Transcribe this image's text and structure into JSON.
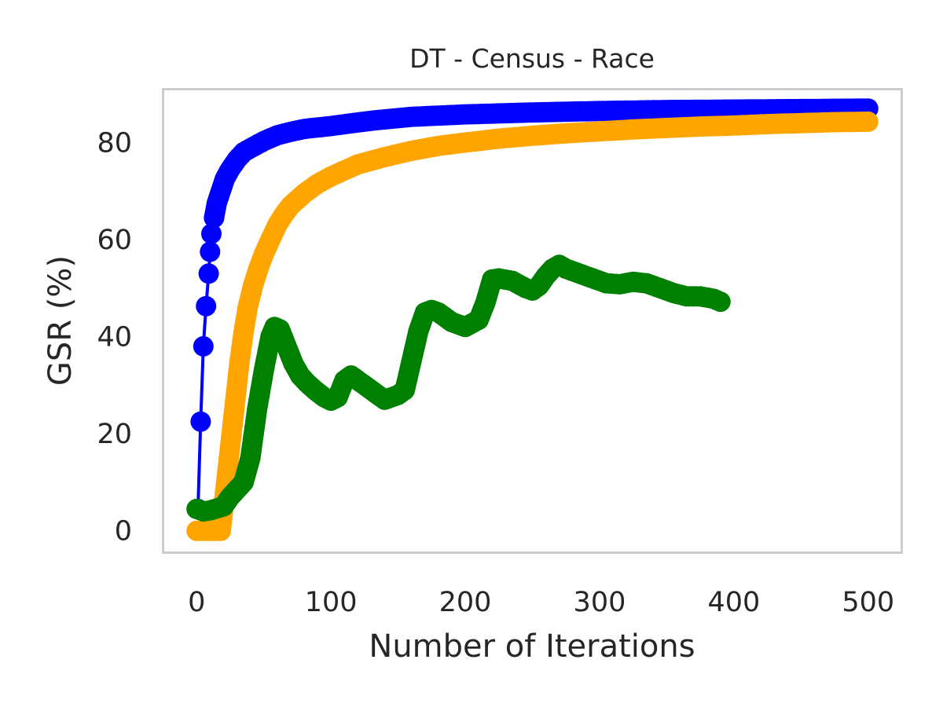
{
  "chart_data": {
    "type": "line",
    "title": "DT - Census - Race",
    "xlabel": "Number of Iterations",
    "ylabel": "GSR (%)",
    "xlim": [
      -25,
      525
    ],
    "ylim": [
      -4.5,
      91
    ],
    "xticks": [
      0,
      100,
      200,
      300,
      400,
      500
    ],
    "yticks": [
      0,
      20,
      40,
      60,
      80
    ],
    "grid": false,
    "legend": "none",
    "series": [
      {
        "color": "#0000ff",
        "marker_density": "sparse-early",
        "points": [
          [
            1,
            4.5
          ],
          [
            3,
            22.5
          ],
          [
            5,
            38
          ],
          [
            7,
            46.3
          ],
          [
            9,
            53
          ],
          [
            10,
            57.5
          ],
          [
            11,
            61.2
          ],
          [
            13,
            64.5
          ],
          [
            15,
            67.5
          ],
          [
            18,
            70
          ],
          [
            21,
            72.5
          ],
          [
            25,
            74.5
          ],
          [
            30,
            76.5
          ],
          [
            35,
            78
          ],
          [
            40,
            78.8
          ],
          [
            50,
            80.3
          ],
          [
            60,
            81.5
          ],
          [
            70,
            82.2
          ],
          [
            80,
            82.8
          ],
          [
            100,
            83.4
          ],
          [
            130,
            84.5
          ],
          [
            160,
            85.3
          ],
          [
            200,
            85.8
          ],
          [
            250,
            86.2
          ],
          [
            300,
            86.5
          ],
          [
            350,
            86.7
          ],
          [
            400,
            86.8
          ],
          [
            450,
            86.9
          ],
          [
            500,
            87
          ]
        ]
      },
      {
        "color": "#ffa500",
        "marker_density": "dense",
        "points": [
          [
            0,
            0
          ],
          [
            5,
            0
          ],
          [
            10,
            0
          ],
          [
            15,
            0
          ],
          [
            18,
            0
          ],
          [
            20,
            5
          ],
          [
            22,
            10
          ],
          [
            24,
            15
          ],
          [
            26,
            20
          ],
          [
            28,
            25
          ],
          [
            30,
            30
          ],
          [
            32,
            35
          ],
          [
            35,
            41
          ],
          [
            38,
            46
          ],
          [
            42,
            50.5
          ],
          [
            46,
            54
          ],
          [
            50,
            57
          ],
          [
            55,
            60
          ],
          [
            60,
            63
          ],
          [
            65,
            65.2
          ],
          [
            70,
            67
          ],
          [
            80,
            69.5
          ],
          [
            90,
            71.5
          ],
          [
            100,
            73
          ],
          [
            120,
            75.5
          ],
          [
            140,
            77
          ],
          [
            160,
            78.3
          ],
          [
            180,
            79.3
          ],
          [
            200,
            80
          ],
          [
            225,
            80.8
          ],
          [
            250,
            81.4
          ],
          [
            275,
            81.9
          ],
          [
            300,
            82.3
          ],
          [
            325,
            82.7
          ],
          [
            350,
            83
          ],
          [
            375,
            83.3
          ],
          [
            400,
            83.5
          ],
          [
            425,
            83.8
          ],
          [
            450,
            84
          ],
          [
            475,
            84.2
          ],
          [
            500,
            84.3
          ]
        ]
      },
      {
        "color": "#008000",
        "marker_density": "dense",
        "points": [
          [
            0,
            4.5
          ],
          [
            5,
            4
          ],
          [
            10,
            4.2
          ],
          [
            15,
            4.6
          ],
          [
            20,
            5
          ],
          [
            25,
            7
          ],
          [
            30,
            8.5
          ],
          [
            35,
            10
          ],
          [
            40,
            15
          ],
          [
            45,
            25
          ],
          [
            50,
            33
          ],
          [
            55,
            40
          ],
          [
            58,
            42
          ],
          [
            62,
            41.5
          ],
          [
            67,
            38
          ],
          [
            72,
            34.5
          ],
          [
            77,
            32
          ],
          [
            82,
            30.5
          ],
          [
            88,
            29
          ],
          [
            95,
            27.5
          ],
          [
            100,
            26.8
          ],
          [
            105,
            27.5
          ],
          [
            110,
            31
          ],
          [
            115,
            32
          ],
          [
            120,
            31
          ],
          [
            130,
            29
          ],
          [
            140,
            27
          ],
          [
            150,
            28
          ],
          [
            155,
            29
          ],
          [
            160,
            35
          ],
          [
            165,
            41
          ],
          [
            170,
            45
          ],
          [
            175,
            45.5
          ],
          [
            180,
            45
          ],
          [
            190,
            43
          ],
          [
            200,
            42
          ],
          [
            210,
            43.5
          ],
          [
            215,
            47
          ],
          [
            220,
            51.8
          ],
          [
            225,
            52
          ],
          [
            235,
            51.5
          ],
          [
            245,
            50
          ],
          [
            250,
            49.5
          ],
          [
            255,
            50.5
          ],
          [
            260,
            52.5
          ],
          [
            265,
            54
          ],
          [
            270,
            54.8
          ],
          [
            275,
            54
          ],
          [
            285,
            53
          ],
          [
            295,
            52
          ],
          [
            305,
            51
          ],
          [
            315,
            50.8
          ],
          [
            325,
            51.3
          ],
          [
            335,
            51
          ],
          [
            345,
            50
          ],
          [
            355,
            49
          ],
          [
            365,
            48.3
          ],
          [
            375,
            48.3
          ],
          [
            385,
            47.8
          ],
          [
            390,
            47.2
          ]
        ]
      }
    ]
  }
}
